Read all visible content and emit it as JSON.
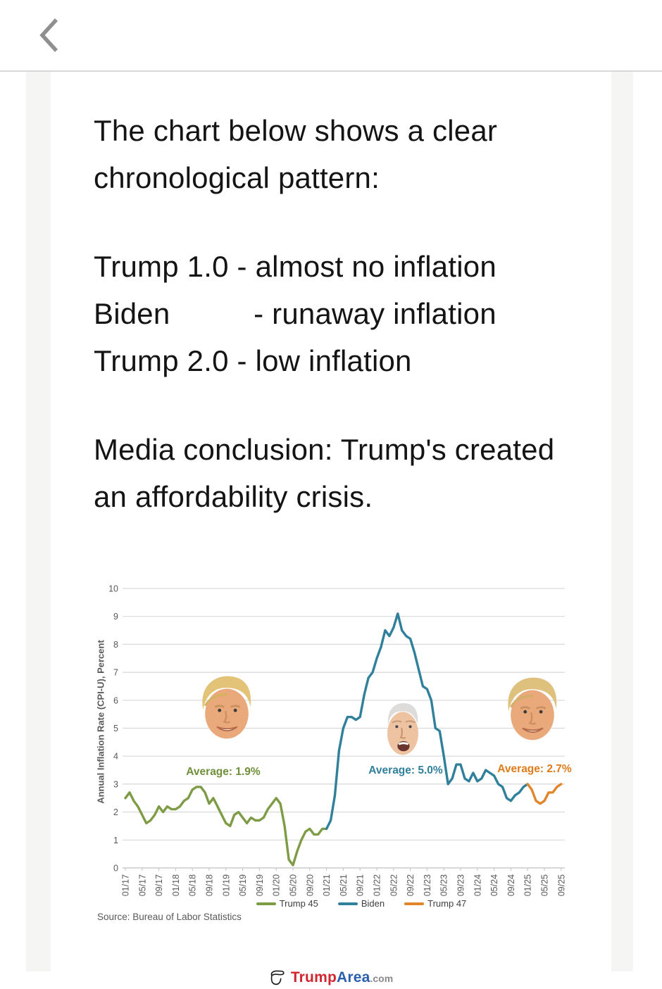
{
  "header": {
    "back_icon": "chevron-left-icon"
  },
  "post": {
    "paragraphs": [
      {
        "lines": [
          "The chart below shows a clear",
          "chronological pattern:"
        ]
      },
      {
        "lines": [
          "Trump 1.0 - almost no inflation",
          "Biden          - runaway inflation",
          "Trump 2.0 - low inflation"
        ]
      },
      {
        "lines": [
          "Media conclusion: Trump's created",
          "an affordability crisis."
        ]
      }
    ]
  },
  "chart_data": {
    "type": "line",
    "title": "",
    "xlabel": "",
    "ylabel": "Annual Inflation Rate (CPI-U), Percent",
    "ylim": [
      0,
      10
    ],
    "yticks": [
      0,
      1,
      2,
      3,
      4,
      5,
      6,
      7,
      8,
      9,
      10
    ],
    "grid": true,
    "months_total": 105,
    "x_start": "01/17",
    "x_end": "09/25",
    "x_tick_interval_months": 4,
    "x_tick_labels": [
      "01/17",
      "05/17",
      "09/17",
      "01/18",
      "05/18",
      "09/18",
      "01/19",
      "05/19",
      "09/19",
      "01/20",
      "05/20",
      "09/20",
      "01/21",
      "05/21",
      "09/21",
      "01/22",
      "05/22",
      "09/22",
      "01/23",
      "05/23",
      "09/23",
      "01/24",
      "05/24",
      "09/24",
      "01/25",
      "05/25",
      "09/25"
    ],
    "series": [
      {
        "name": "Trump 45",
        "color": "#7E9B45",
        "start_month": 0,
        "values": [
          2.5,
          2.7,
          2.4,
          2.2,
          1.9,
          1.6,
          1.7,
          1.9,
          2.2,
          2.0,
          2.2,
          2.1,
          2.1,
          2.2,
          2.4,
          2.5,
          2.8,
          2.9,
          2.9,
          2.7,
          2.3,
          2.5,
          2.2,
          1.9,
          1.6,
          1.5,
          1.9,
          2.0,
          1.8,
          1.6,
          1.8,
          1.7,
          1.7,
          1.8,
          2.1,
          2.3,
          2.5,
          2.3,
          1.5,
          0.3,
          0.1,
          0.6,
          1.0,
          1.3,
          1.4,
          1.2,
          1.2,
          1.4,
          1.4
        ]
      },
      {
        "name": "Biden",
        "color": "#31809B",
        "start_month": 48,
        "values": [
          1.4,
          1.7,
          2.6,
          4.2,
          5.0,
          5.4,
          5.4,
          5.3,
          5.4,
          6.2,
          6.8,
          7.0,
          7.5,
          7.9,
          8.5,
          8.3,
          8.6,
          9.1,
          8.5,
          8.3,
          8.2,
          7.7,
          7.1,
          6.5,
          6.4,
          6.0,
          5.0,
          4.9,
          4.0,
          3.0,
          3.2,
          3.7,
          3.7,
          3.2,
          3.1,
          3.4,
          3.1,
          3.2,
          3.5,
          3.4,
          3.3,
          3.0,
          2.9,
          2.5,
          2.4,
          2.6,
          2.7,
          2.9,
          3.0
        ]
      },
      {
        "name": "Trump 47",
        "color": "#E2862B",
        "start_month": 96,
        "values": [
          3.0,
          2.8,
          2.4,
          2.3,
          2.4,
          2.7,
          2.7,
          2.9,
          3.0
        ]
      }
    ],
    "annotations": [
      {
        "text": "Average: 1.9%",
        "color": "#6F8F3A",
        "series": "Trump 45"
      },
      {
        "text": "Average: 5.0%",
        "color": "#31809B",
        "series": "Biden"
      },
      {
        "text": "Average: 2.7%",
        "color": "#E07B1A",
        "series": "Trump 47"
      }
    ],
    "overlays": [
      "trump-45-face",
      "biden-face",
      "trump-47-face"
    ],
    "legend": [
      "Trump 45",
      "Biden",
      "Trump 47"
    ],
    "legend_position": "bottom",
    "source": "Source: Bureau of Labor Statistics"
  },
  "footer": {
    "brand_first": "Trump",
    "brand_second": "Area",
    "brand_suffix": ".com",
    "brand_icon": "trump-hair-profile-icon",
    "colors": {
      "first": "#D02630",
      "second": "#2B5FAD",
      "suffix": "#8A8A8A"
    }
  }
}
